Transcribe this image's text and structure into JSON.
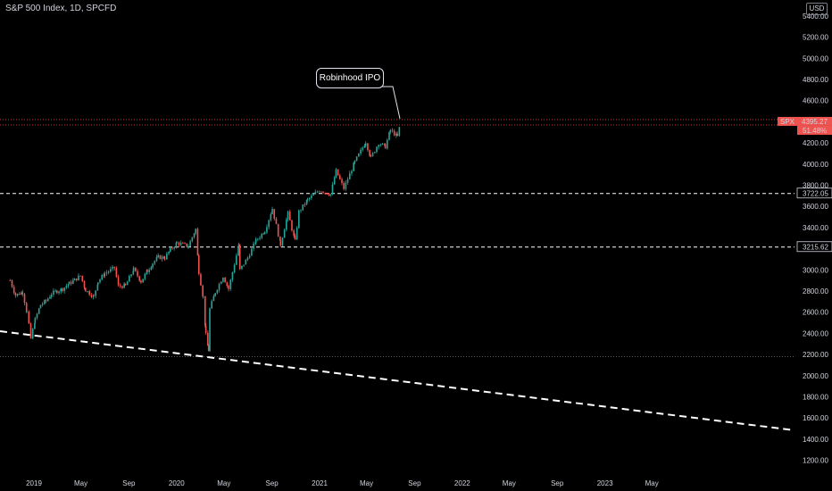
{
  "header": {
    "title": "S&P 500 Index, 1D, SPCFD",
    "currency": "USD"
  },
  "annotation": {
    "text": "Robinhood IPO"
  },
  "symbol": {
    "ticker": "SPX",
    "price": "4395.27",
    "change": "51.48%",
    "color": "#f23645"
  },
  "levels": [
    {
      "label": "3722.05",
      "value": 3722.05
    },
    {
      "label": "3215.62",
      "value": 3215.62
    }
  ],
  "colors": {
    "up": "#26a69a",
    "down": "#ef5350",
    "grid_line": "#9598a1",
    "dashed": "#ffffff"
  },
  "chart_data": {
    "type": "candlestick",
    "title": "S&P 500 Index, 1D, SPCFD",
    "xlabel": "",
    "ylabel": "",
    "y_ticks": [
      1200,
      1400,
      1600,
      1800,
      2000,
      2200,
      2400,
      2600,
      2800,
      3000,
      3200,
      3400,
      3600,
      3800,
      4000,
      4200,
      4400,
      4600,
      4800,
      5000,
      5200,
      5400
    ],
    "x_ticks": [
      "2019",
      "May",
      "Sep",
      "2020",
      "May",
      "Sep",
      "2021",
      "May",
      "Sep",
      "2022",
      "May",
      "Sep",
      "2023",
      "May"
    ],
    "grid": false,
    "close_series": [
      {
        "date": "2018-11-01",
        "close": 2900
      },
      {
        "date": "2018-11-15",
        "close": 2760
      },
      {
        "date": "2018-12-03",
        "close": 2790
      },
      {
        "date": "2018-12-14",
        "close": 2600
      },
      {
        "date": "2018-12-24",
        "close": 2350
      },
      {
        "date": "2019-01-04",
        "close": 2530
      },
      {
        "date": "2019-01-18",
        "close": 2670
      },
      {
        "date": "2019-02-01",
        "close": 2705
      },
      {
        "date": "2019-02-15",
        "close": 2775
      },
      {
        "date": "2019-03-01",
        "close": 2800
      },
      {
        "date": "2019-03-15",
        "close": 2820
      },
      {
        "date": "2019-04-01",
        "close": 2870
      },
      {
        "date": "2019-04-15",
        "close": 2905
      },
      {
        "date": "2019-04-30",
        "close": 2945
      },
      {
        "date": "2019-05-13",
        "close": 2810
      },
      {
        "date": "2019-06-03",
        "close": 2745
      },
      {
        "date": "2019-06-14",
        "close": 2890
      },
      {
        "date": "2019-07-01",
        "close": 2965
      },
      {
        "date": "2019-07-26",
        "close": 3020
      },
      {
        "date": "2019-08-05",
        "close": 2845
      },
      {
        "date": "2019-08-23",
        "close": 2850
      },
      {
        "date": "2019-09-13",
        "close": 3005
      },
      {
        "date": "2019-10-02",
        "close": 2890
      },
      {
        "date": "2019-10-18",
        "close": 2990
      },
      {
        "date": "2019-11-01",
        "close": 3065
      },
      {
        "date": "2019-11-15",
        "close": 3120
      },
      {
        "date": "2019-12-02",
        "close": 3115
      },
      {
        "date": "2019-12-16",
        "close": 3190
      },
      {
        "date": "2020-01-02",
        "close": 3255
      },
      {
        "date": "2020-01-31",
        "close": 3225
      },
      {
        "date": "2020-02-19",
        "close": 3385
      },
      {
        "date": "2020-02-27",
        "close": 2980
      },
      {
        "date": "2020-03-09",
        "close": 2745
      },
      {
        "date": "2020-03-16",
        "close": 2385
      },
      {
        "date": "2020-03-23",
        "close": 2240
      },
      {
        "date": "2020-03-26",
        "close": 2630
      },
      {
        "date": "2020-04-09",
        "close": 2790
      },
      {
        "date": "2020-04-29",
        "close": 2940
      },
      {
        "date": "2020-05-13",
        "close": 2820
      },
      {
        "date": "2020-06-08",
        "close": 3230
      },
      {
        "date": "2020-06-11",
        "close": 3000
      },
      {
        "date": "2020-07-01",
        "close": 3115
      },
      {
        "date": "2020-07-22",
        "close": 3275
      },
      {
        "date": "2020-08-14",
        "close": 3370
      },
      {
        "date": "2020-09-02",
        "close": 3580
      },
      {
        "date": "2020-09-23",
        "close": 3240
      },
      {
        "date": "2020-10-12",
        "close": 3535
      },
      {
        "date": "2020-10-30",
        "close": 3270
      },
      {
        "date": "2020-11-09",
        "close": 3550
      },
      {
        "date": "2020-12-01",
        "close": 3660
      },
      {
        "date": "2020-12-31",
        "close": 3755
      },
      {
        "date": "2021-01-29",
        "close": 3715
      },
      {
        "date": "2021-02-12",
        "close": 3935
      },
      {
        "date": "2021-03-04",
        "close": 3770
      },
      {
        "date": "2021-04-01",
        "close": 4020
      },
      {
        "date": "2021-04-29",
        "close": 4210
      },
      {
        "date": "2021-05-12",
        "close": 4060
      },
      {
        "date": "2021-06-01",
        "close": 4200
      },
      {
        "date": "2021-06-18",
        "close": 4165
      },
      {
        "date": "2021-07-01",
        "close": 4320
      },
      {
        "date": "2021-07-19",
        "close": 4260
      },
      {
        "date": "2021-07-29",
        "close": 4420
      }
    ]
  }
}
